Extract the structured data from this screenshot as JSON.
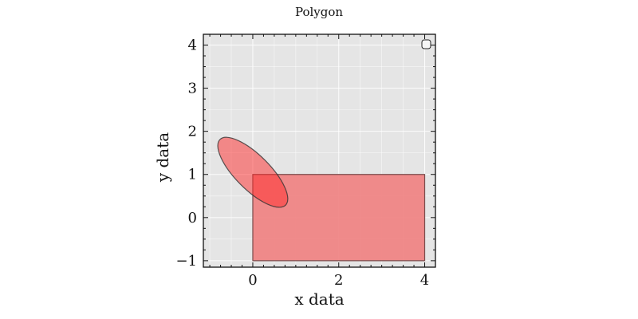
{
  "chart_data": {
    "type": "area",
    "title": "Polygon",
    "xlabel": "x data",
    "ylabel": "y data",
    "xlim": [
      -1.15,
      4.25
    ],
    "ylim": [
      -1.15,
      4.25
    ],
    "xticks": [
      0,
      2,
      4
    ],
    "yticks": [
      -1,
      0,
      1,
      2,
      3,
      4
    ],
    "xtick_labels": [
      "0",
      "2",
      "4"
    ],
    "ytick_labels": [
      "−1",
      "0",
      "1",
      "2",
      "3",
      "4"
    ],
    "grid": true,
    "legend": {
      "placement": "top-right",
      "entries": []
    },
    "shapes": [
      {
        "kind": "polygon",
        "points": [
          [
            0,
            -1
          ],
          [
            4,
            -1
          ],
          [
            4,
            1
          ],
          [
            0,
            1
          ]
        ],
        "fill_color": "#f08080",
        "edge_color": "#7a4a4a"
      },
      {
        "kind": "ellipse",
        "center": [
          0,
          1.05
        ],
        "semi_major": 1.08,
        "semi_minor": 0.4,
        "angle_deg": -45,
        "fill_color": "#ff2a2a",
        "fill_opacity": 0.5,
        "edge_color": "#333333"
      }
    ]
  },
  "colors": {
    "plot_background": "#e5e5e5",
    "grid_line": "#ffffff",
    "axes_frame": "#111111"
  }
}
